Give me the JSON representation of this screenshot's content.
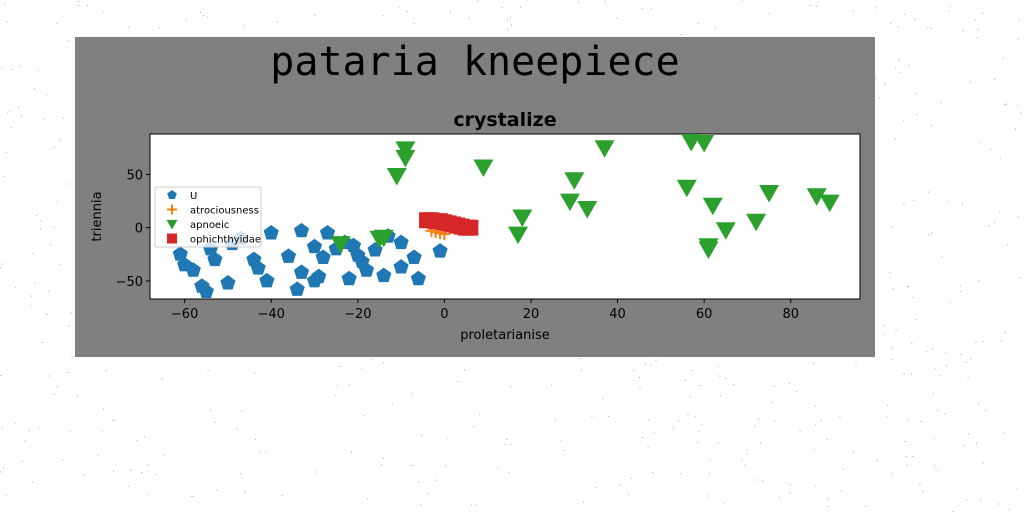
{
  "figure": {
    "suptitle": "pataria kneepiece",
    "background": "#808080",
    "page_background": "#ffffff"
  },
  "chart_data": {
    "type": "scatter",
    "title": "crystalize",
    "xlabel": "proletarianise",
    "ylabel": "triennia",
    "xlim": [
      -68,
      96
    ],
    "ylim": [
      -67,
      88
    ],
    "xticks": [
      -60,
      -40,
      -20,
      0,
      20,
      40,
      60,
      80
    ],
    "yticks": [
      -50,
      0,
      50
    ],
    "grid": false,
    "legend": "left",
    "series": [
      {
        "name": "U",
        "marker": "pentagon",
        "color": "#1f77b4",
        "x": [
          -61,
          -60,
          -58,
          -56,
          -55,
          -54,
          -53,
          -50,
          -49,
          -47,
          -44,
          -43,
          -41,
          -40,
          -36,
          -34,
          -33,
          -33,
          -30,
          -30,
          -29,
          -28,
          -27,
          -25,
          -23,
          -22,
          -21,
          -20,
          -19,
          -18,
          -16,
          -14,
          -13,
          -10,
          -10,
          -7,
          -6,
          -1
        ],
        "y": [
          -25,
          -35,
          -40,
          -55,
          -60,
          -20,
          -30,
          -52,
          -15,
          -10,
          -30,
          -38,
          -50,
          -5,
          -27,
          -58,
          -42,
          -3,
          -18,
          -50,
          -46,
          -28,
          -5,
          -20,
          -14,
          -48,
          -17,
          -26,
          -32,
          -40,
          -21,
          -45,
          -8,
          -37,
          -14,
          -28,
          -48,
          -22
        ]
      },
      {
        "name": "atrociousness",
        "marker": "plus",
        "color": "#ff7f0e",
        "x": [
          -3,
          -2,
          -1,
          0
        ],
        "y": [
          -3,
          -4,
          -5,
          -6
        ]
      },
      {
        "name": "apnoeic",
        "marker": "triangle-down",
        "color": "#2ca02c",
        "x": [
          -24,
          -15,
          -14,
          -11,
          -9,
          -9,
          9,
          17,
          18,
          29,
          30,
          33,
          37,
          56,
          57,
          60,
          61,
          61,
          62,
          65,
          72,
          75,
          86,
          89
        ],
        "y": [
          -15,
          -10,
          -9,
          49,
          74,
          66,
          57,
          -6,
          10,
          25,
          45,
          18,
          75,
          38,
          81,
          80,
          -17,
          -20,
          21,
          -2,
          6,
          33,
          30,
          24
        ]
      },
      {
        "name": "ophichthyidae",
        "marker": "square",
        "color": "#d62728",
        "x": [
          -4,
          -3,
          -2,
          -1,
          0,
          1,
          2,
          3,
          4,
          5,
          6
        ],
        "y": [
          7,
          7,
          6,
          6,
          5,
          4,
          3,
          2,
          1,
          0,
          0
        ]
      }
    ]
  }
}
